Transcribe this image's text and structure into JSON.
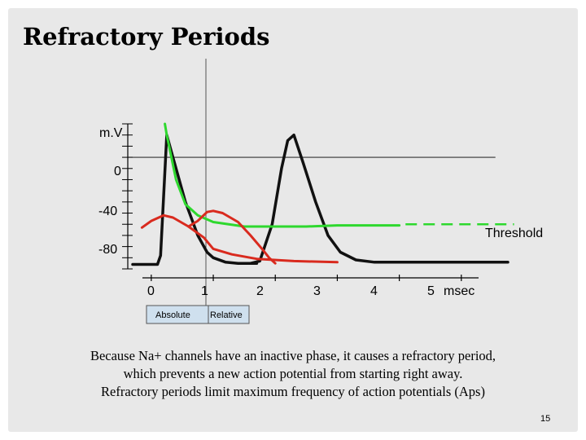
{
  "slide": {
    "title": "Refractory Periods",
    "caption_lines": [
      "Because Na+ channels have an inactive phase, it causes a refractory period,",
      "which prevents a new action potential from starting right away.",
      "Refractory periods limit maximum frequency of action potentials (Aps)"
    ],
    "page_number": "15"
  },
  "chart_data": {
    "type": "line",
    "title": "",
    "ylabel": "m.V",
    "xlabel": "msec",
    "y_ticks": [
      "0",
      "-40",
      "-80"
    ],
    "x_ticks": [
      "0",
      "1",
      "2",
      "3",
      "4",
      "5"
    ],
    "xlim": [
      -0.3,
      6
    ],
    "ylim": [
      -100,
      30
    ],
    "threshold": {
      "label": "Threshold",
      "value": -60
    },
    "period_labels": [
      "Absolute",
      "Relative"
    ],
    "colors": {
      "ap": "#111111",
      "green": "#2ed82e",
      "red": "#d92a1e",
      "box": "#cfe0ee"
    },
    "series": [
      {
        "color_key": "ap",
        "points": [
          [
            -0.3,
            -96
          ],
          [
            0.1,
            -96
          ],
          [
            0.15,
            -88
          ],
          [
            0.25,
            20
          ],
          [
            0.35,
            0
          ],
          [
            0.55,
            -40
          ],
          [
            0.75,
            -70
          ],
          [
            0.9,
            -85
          ],
          [
            1.0,
            -90
          ],
          [
            1.2,
            -94
          ],
          [
            1.4,
            -95
          ],
          [
            1.6,
            -95
          ],
          [
            1.7,
            -95
          ]
        ]
      },
      {
        "color_key": "ap",
        "points": [
          [
            1.6,
            -95
          ],
          [
            1.75,
            -93
          ],
          [
            1.95,
            -60
          ],
          [
            2.1,
            -10
          ],
          [
            2.2,
            15
          ],
          [
            2.3,
            20
          ],
          [
            2.45,
            -5
          ],
          [
            2.65,
            -40
          ],
          [
            2.85,
            -70
          ],
          [
            3.05,
            -85
          ],
          [
            3.3,
            -92
          ],
          [
            3.6,
            -94
          ],
          [
            4.0,
            -94
          ],
          [
            5.0,
            -94
          ],
          [
            5.75,
            -94
          ]
        ]
      },
      {
        "color_key": "green",
        "points": [
          [
            0.22,
            30
          ],
          [
            0.25,
            20
          ],
          [
            0.4,
            -20
          ],
          [
            0.55,
            -42
          ],
          [
            0.75,
            -52
          ],
          [
            1.0,
            -58
          ],
          [
            1.5,
            -62
          ],
          [
            2.0,
            -62
          ],
          [
            2.5,
            -62
          ],
          [
            3.0,
            -61
          ],
          [
            3.5,
            -61
          ],
          [
            4.0,
            -61
          ]
        ]
      },
      {
        "color_key": "red",
        "points": [
          [
            -0.15,
            -63
          ],
          [
            0.0,
            -57
          ],
          [
            0.2,
            -52
          ],
          [
            0.35,
            -54
          ],
          [
            0.6,
            -62
          ],
          [
            0.85,
            -72
          ],
          [
            1.0,
            -82
          ],
          [
            1.3,
            -87
          ],
          [
            1.7,
            -91
          ],
          [
            2.3,
            -93
          ],
          [
            3.0,
            -94
          ]
        ]
      },
      {
        "color_key": "red",
        "points": [
          [
            0.6,
            -62
          ],
          [
            0.75,
            -57
          ],
          [
            0.9,
            -49
          ],
          [
            1.0,
            -48
          ],
          [
            1.15,
            -50
          ],
          [
            1.4,
            -58
          ],
          [
            1.6,
            -70
          ],
          [
            1.8,
            -83
          ],
          [
            1.9,
            -90
          ],
          [
            2.0,
            -95
          ]
        ]
      }
    ]
  }
}
